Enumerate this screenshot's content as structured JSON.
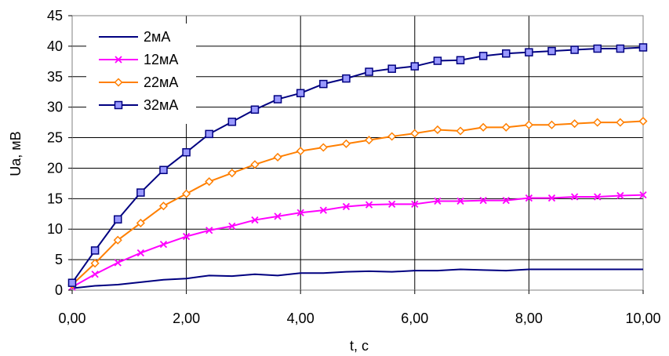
{
  "chart_data": {
    "type": "line",
    "xlabel": "t, с",
    "ylabel": "Ua, мВ",
    "xlim": [
      0,
      10
    ],
    "ylim": [
      0,
      45
    ],
    "xticks": [
      0,
      2,
      4,
      6,
      8,
      10
    ],
    "xtick_labels": [
      "0,00",
      "2,00",
      "4,00",
      "6,00",
      "8,00",
      "10,00"
    ],
    "yticks": [
      0,
      5,
      10,
      15,
      20,
      25,
      30,
      35,
      40,
      45
    ],
    "ytick_labels": [
      "0",
      "5",
      "10",
      "15",
      "20",
      "25",
      "30",
      "35",
      "40",
      "45"
    ],
    "grid": true,
    "legend_position": "top-left",
    "x": [
      0,
      0.4,
      0.8,
      1.2,
      1.6,
      2.0,
      2.4,
      2.8,
      3.2,
      3.6,
      4.0,
      4.4,
      4.8,
      5.2,
      5.6,
      6.0,
      6.4,
      6.8,
      7.2,
      7.6,
      8.0,
      8.4,
      8.8,
      9.2,
      9.6,
      10.0
    ],
    "series": [
      {
        "name": "2мА",
        "color": "#000080",
        "marker": "none",
        "values": [
          0.3,
          0.7,
          0.9,
          1.3,
          1.7,
          1.9,
          2.4,
          2.3,
          2.6,
          2.4,
          2.8,
          2.8,
          3.0,
          3.1,
          3.0,
          3.2,
          3.2,
          3.4,
          3.3,
          3.2,
          3.4,
          3.4,
          3.4,
          3.4,
          3.4,
          3.4
        ]
      },
      {
        "name": "12мА",
        "color": "#ff00ff",
        "marker": "x",
        "values": [
          0.5,
          2.6,
          4.5,
          6.1,
          7.5,
          8.8,
          9.8,
          10.5,
          11.5,
          12.1,
          12.7,
          13.1,
          13.7,
          14.0,
          14.1,
          14.1,
          14.6,
          14.6,
          14.7,
          14.7,
          15.1,
          15.1,
          15.3,
          15.3,
          15.5,
          15.6
        ]
      },
      {
        "name": "22мА",
        "color": "#ff7f00",
        "marker": "diamond",
        "values": [
          0.9,
          4.4,
          8.2,
          11.0,
          13.8,
          15.8,
          17.8,
          19.2,
          20.6,
          21.8,
          22.8,
          23.4,
          24.0,
          24.6,
          25.2,
          25.7,
          26.3,
          26.1,
          26.7,
          26.7,
          27.1,
          27.1,
          27.3,
          27.5,
          27.5,
          27.7
        ]
      },
      {
        "name": "32мА",
        "color": "#000080",
        "marker": "square",
        "values": [
          1.2,
          6.5,
          11.6,
          16.0,
          19.7,
          22.6,
          25.6,
          27.6,
          29.6,
          31.3,
          32.3,
          33.8,
          34.7,
          35.8,
          36.3,
          36.7,
          37.6,
          37.7,
          38.4,
          38.8,
          39.0,
          39.2,
          39.4,
          39.6,
          39.6,
          39.8
        ]
      }
    ]
  }
}
